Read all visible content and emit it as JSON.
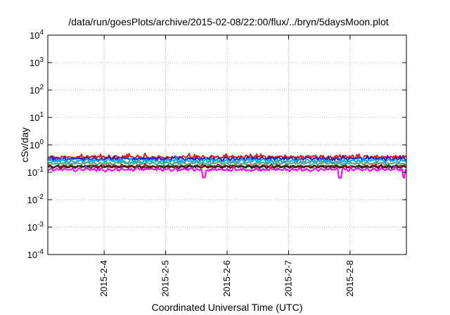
{
  "chart_data": {
    "type": "line",
    "title": "/data/run/goesPlots/archive/2015-02-08/22:00/flux/../bryn/5daysMoon.plot",
    "xlabel": "Coordinated Universal Time (UTC)",
    "ylabel": "cSv/day",
    "yscale": "log",
    "ylim": [
      0.0001,
      10000
    ],
    "xlim": [
      "2015-02-03 02:00",
      "2015-02-08 22:00"
    ],
    "grid": true,
    "y_ticks": [
      {
        "value": 0.0001,
        "base": "10",
        "exp": "-4"
      },
      {
        "value": 0.001,
        "base": "10",
        "exp": "-3"
      },
      {
        "value": 0.01,
        "base": "10",
        "exp": "-2"
      },
      {
        "value": 0.1,
        "base": "10",
        "exp": "-1"
      },
      {
        "value": 1,
        "base": "10",
        "exp": "0"
      },
      {
        "value": 10,
        "base": "10",
        "exp": "1"
      },
      {
        "value": 100,
        "base": "10",
        "exp": "2"
      },
      {
        "value": 1000,
        "base": "10",
        "exp": "3"
      },
      {
        "value": 10000,
        "base": "10",
        "exp": "4"
      }
    ],
    "x_ticks": [
      {
        "value": "2015-02-04 00:00",
        "label": "2015-2-4"
      },
      {
        "value": "2015-02-05 00:00",
        "label": "2015-2-5"
      },
      {
        "value": "2015-02-06 00:00",
        "label": "2015-2-6"
      },
      {
        "value": "2015-02-07 00:00",
        "label": "2015-2-7"
      },
      {
        "value": "2015-02-08 00:00",
        "label": "2015-2-8"
      }
    ],
    "series": [
      {
        "color": "#e41a1c",
        "level": 0.36,
        "noise": 0.12,
        "dips": []
      },
      {
        "color": "#2020c0",
        "level": 0.31,
        "noise": 0.12,
        "dips": []
      },
      {
        "color": "#00a8ff",
        "level": 0.26,
        "noise": 0.14,
        "dips": []
      },
      {
        "color": "#3cb371",
        "level": 0.21,
        "noise": 0.08,
        "dips": []
      },
      {
        "color": "#b01818",
        "level": 0.17,
        "noise": 0.06,
        "dips": []
      },
      {
        "color": "#202020",
        "level": 0.155,
        "noise": 0.05,
        "dips": []
      },
      {
        "color": "#ff00ff",
        "level": 0.125,
        "noise": 0.1,
        "dips": [
          "2015-02-05 15:00",
          "2015-02-07 20:00",
          "2015-02-08 21:00"
        ]
      }
    ]
  }
}
